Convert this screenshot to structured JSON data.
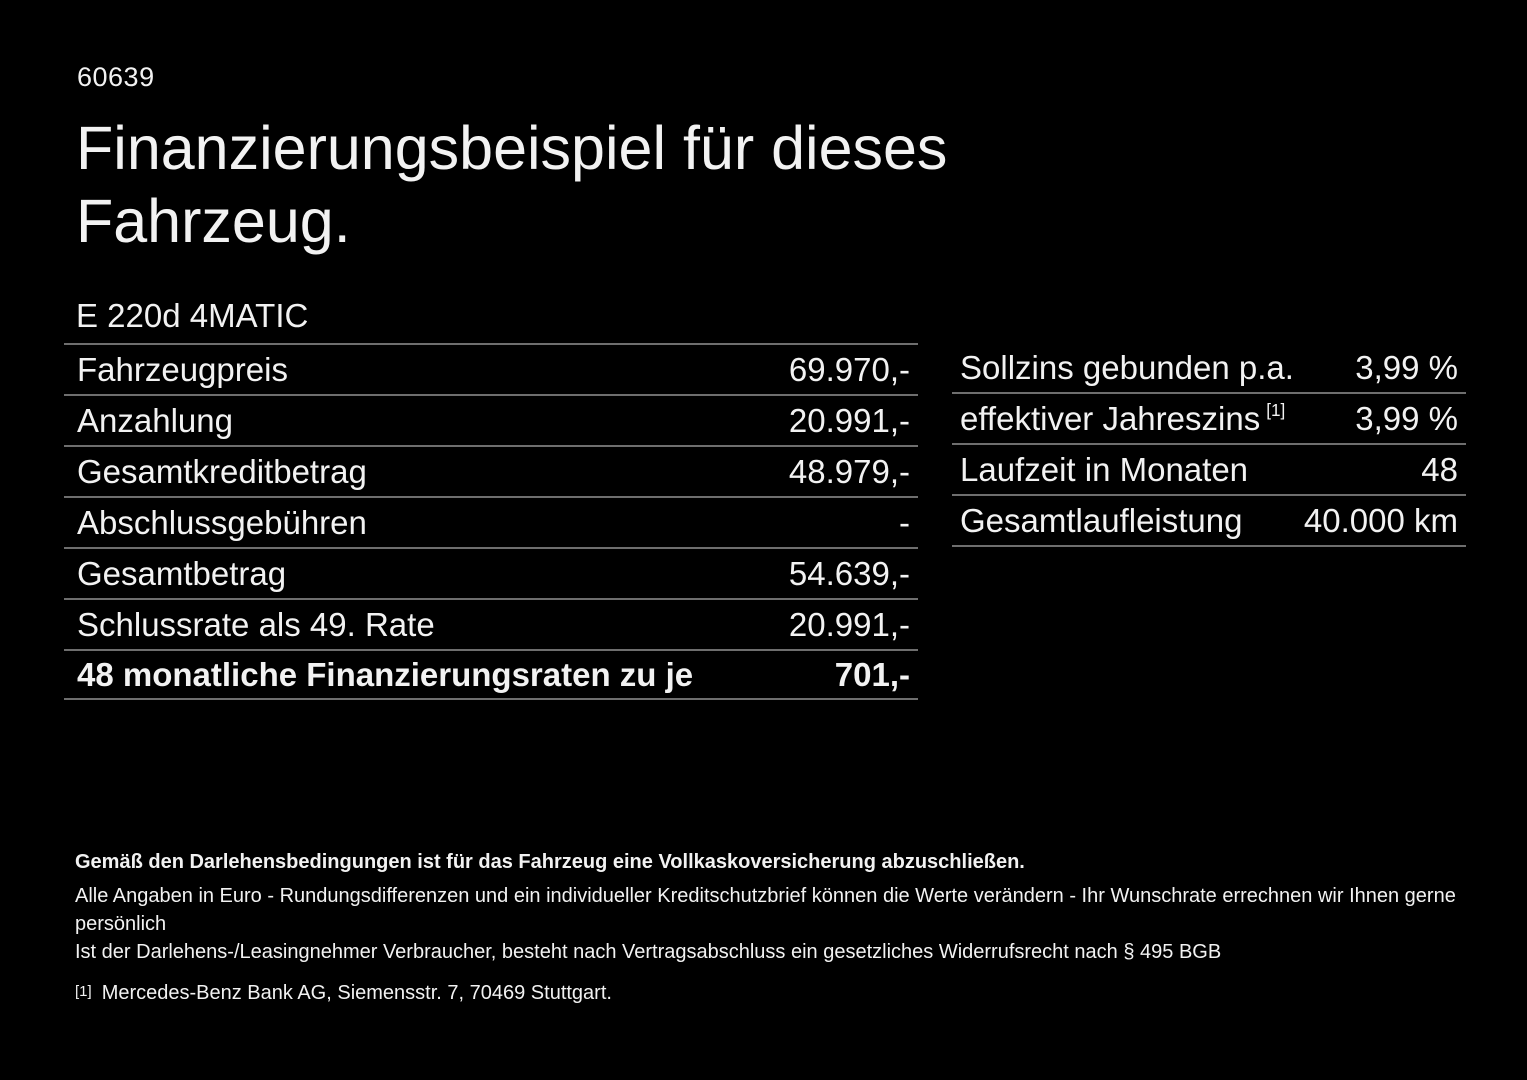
{
  "page": {
    "doc_number": "60639",
    "title_line1": "Finanzierungsbeispiel für dieses",
    "title_line2": "Fahrzeug.",
    "vehicle_model": "E 220d 4MATIC"
  },
  "financing_table": {
    "rows": [
      {
        "label": "Fahrzeugpreis",
        "value": "69.970,-"
      },
      {
        "label": "Anzahlung",
        "value": "20.991,-"
      },
      {
        "label": "Gesamtkreditbetrag",
        "value": "48.979,-"
      },
      {
        "label": "Abschlussgebühren",
        "value": "-"
      },
      {
        "label": "Gesamtbetrag",
        "value": "54.639,-"
      },
      {
        "label": "Schlussrate als 49. Rate",
        "value": "20.991,-"
      },
      {
        "label": "48 monatliche Finanzierungsraten zu je",
        "value": "701,-"
      }
    ]
  },
  "conditions_table": {
    "rows": [
      {
        "label": "Sollzins gebunden p.a.",
        "sup": "",
        "value": "3,99 %"
      },
      {
        "label": "effektiver Jahreszins",
        "sup": "[1]",
        "value": "3,99 %"
      },
      {
        "label": "Laufzeit in Monaten",
        "sup": "",
        "value": "48"
      },
      {
        "label": "Gesamtlaufleistung",
        "sup": "",
        "value": "40.000 km"
      }
    ]
  },
  "footer": {
    "insurance_note": "Gemäß den Darlehensbedingungen ist für das Fahrzeug eine Vollkaskoversicherung abzuschließen.",
    "disclaimer_line1": "Alle Angaben in Euro - Rundungsdifferenzen und ein individueller Kreditschutzbrief können die Werte verändern - Ihr Wunschrate errechnen wir Ihnen gerne persönlich",
    "disclaimer_line2": "Ist der Darlehens-/Leasingnehmer Verbraucher, besteht nach Vertragsabschluss ein gesetzliches Widerrufsrecht nach § 495 BGB",
    "footnote_marker": "[1]",
    "footnote_text": "Mercedes-Benz Bank AG, Siemensstr. 7, 70469 Stuttgart."
  },
  "colors": {
    "background": "#000000",
    "text": "#f2f2f2",
    "divider": "#6e6e6e"
  }
}
